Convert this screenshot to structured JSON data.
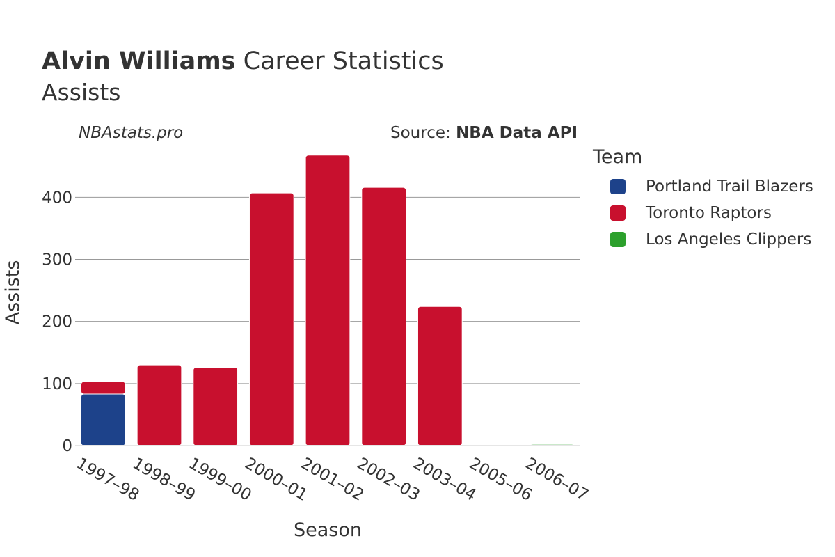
{
  "header": {
    "title_bold": "Alvin Williams",
    "title_rest": " Career Statistics",
    "subtitle": "Assists",
    "credit": "NBAstats.pro",
    "source_prefix": "Source: ",
    "source_name": "NBA Data API"
  },
  "legend": {
    "title": "Team",
    "items": [
      {
        "label": "Portland Trail Blazers",
        "color": "#1d428a"
      },
      {
        "label": "Toronto Raptors",
        "color": "#c8102e"
      },
      {
        "label": "Los Angeles Clippers",
        "color": "#2ca02c"
      }
    ]
  },
  "chart_data": {
    "type": "bar",
    "stacked": true,
    "title": "Alvin Williams Career Statistics",
    "subtitle": "Assists",
    "xlabel": "Season",
    "ylabel": "Assists",
    "ylim": [
      0,
      480
    ],
    "yticks": [
      0,
      100,
      200,
      300,
      400
    ],
    "grid": true,
    "legend_position": "right",
    "categories": [
      "1997–98",
      "1998–99",
      "1999–00",
      "2000–01",
      "2001–02",
      "2002–03",
      "2003–04",
      "2005–06",
      "2006–07"
    ],
    "series": [
      {
        "name": "Portland Trail Blazers",
        "color": "#1d428a",
        "values": [
          83,
          0,
          0,
          0,
          0,
          0,
          0,
          0,
          0
        ]
      },
      {
        "name": "Toronto Raptors",
        "color": "#c8102e",
        "values": [
          20,
          130,
          126,
          407,
          468,
          416,
          224,
          0,
          0
        ]
      },
      {
        "name": "Los Angeles Clippers",
        "color": "#2ca02c",
        "values": [
          0,
          0,
          0,
          0,
          0,
          0,
          0,
          0,
          2
        ]
      }
    ]
  }
}
